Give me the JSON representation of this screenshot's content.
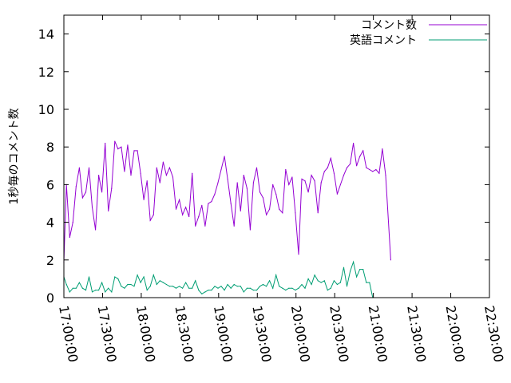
{
  "chart_data": {
    "type": "line",
    "ylabel": "1秒毎のコメント数",
    "xlabel": "",
    "title": "",
    "ylim": [
      0,
      15
    ],
    "xlim": [
      "17:00:00",
      "22:30:00"
    ],
    "grid": false,
    "legend_placement": "top-right",
    "y_ticks": [
      "0",
      "2",
      "4",
      "6",
      "8",
      "10",
      "12",
      "14"
    ],
    "x_ticks": [
      "17:00:00",
      "17:30:00",
      "18:00:00",
      "18:30:00",
      "19:00:00",
      "19:30:00",
      "20:00:00",
      "20:30:00",
      "21:00:00",
      "21:30:00",
      "22:00:00",
      "22:30:00"
    ],
    "series": [
      {
        "name": "コメント数",
        "color": "#9400d3",
        "points": [
          [
            "17:00:00",
            1.9
          ],
          [
            "17:02:00",
            6.0
          ],
          [
            "17:04:30",
            3.2
          ],
          [
            "17:07:00",
            4.0
          ],
          [
            "17:09:30",
            5.9
          ],
          [
            "17:12:00",
            6.9
          ],
          [
            "17:14:30",
            5.3
          ],
          [
            "17:17:00",
            5.6
          ],
          [
            "17:19:30",
            6.9
          ],
          [
            "17:22:00",
            4.8
          ],
          [
            "17:24:30",
            3.6
          ],
          [
            "17:27:00",
            6.5
          ],
          [
            "17:29:30",
            5.6
          ],
          [
            "17:32:00",
            8.2
          ],
          [
            "17:34:30",
            4.6
          ],
          [
            "17:37:00",
            5.8
          ],
          [
            "17:39:30",
            8.3
          ],
          [
            "17:42:00",
            7.9
          ],
          [
            "17:44:30",
            8.0
          ],
          [
            "17:47:00",
            6.7
          ],
          [
            "17:49:30",
            8.1
          ],
          [
            "17:52:00",
            6.5
          ],
          [
            "17:54:30",
            7.8
          ],
          [
            "17:57:00",
            7.8
          ],
          [
            "17:59:30",
            6.6
          ],
          [
            "18:02:00",
            5.2
          ],
          [
            "18:04:30",
            6.2
          ],
          [
            "18:07:00",
            4.1
          ],
          [
            "18:09:30",
            4.4
          ],
          [
            "18:12:00",
            6.9
          ],
          [
            "18:14:30",
            6.1
          ],
          [
            "18:17:00",
            7.2
          ],
          [
            "18:19:30",
            6.5
          ],
          [
            "18:22:00",
            6.9
          ],
          [
            "18:24:30",
            6.4
          ],
          [
            "18:27:00",
            4.7
          ],
          [
            "18:29:30",
            5.2
          ],
          [
            "18:32:00",
            4.4
          ],
          [
            "18:34:30",
            4.8
          ],
          [
            "18:37:00",
            4.3
          ],
          [
            "18:39:30",
            6.6
          ],
          [
            "18:42:00",
            3.8
          ],
          [
            "18:44:30",
            4.3
          ],
          [
            "18:47:00",
            4.9
          ],
          [
            "18:49:30",
            3.8
          ],
          [
            "18:52:00",
            5.0
          ],
          [
            "18:54:30",
            5.1
          ],
          [
            "18:57:00",
            5.5
          ],
          [
            "18:59:30",
            6.1
          ],
          [
            "19:02:00",
            6.8
          ],
          [
            "19:04:30",
            7.5
          ],
          [
            "19:07:00",
            6.3
          ],
          [
            "19:09:30",
            5.0
          ],
          [
            "19:12:00",
            3.8
          ],
          [
            "19:14:30",
            6.1
          ],
          [
            "19:17:00",
            4.6
          ],
          [
            "19:19:30",
            6.5
          ],
          [
            "19:22:00",
            5.8
          ],
          [
            "19:24:30",
            3.6
          ],
          [
            "19:27:00",
            6.1
          ],
          [
            "19:29:30",
            6.9
          ],
          [
            "19:32:00",
            5.6
          ],
          [
            "19:34:30",
            5.3
          ],
          [
            "19:37:00",
            4.4
          ],
          [
            "19:39:30",
            4.7
          ],
          [
            "19:42:00",
            6.0
          ],
          [
            "19:44:30",
            5.5
          ],
          [
            "19:47:00",
            4.7
          ],
          [
            "19:49:30",
            4.5
          ],
          [
            "19:52:00",
            6.8
          ],
          [
            "19:54:30",
            6.0
          ],
          [
            "19:57:00",
            6.4
          ],
          [
            "19:59:30",
            4.5
          ],
          [
            "20:02:00",
            2.3
          ],
          [
            "20:04:30",
            6.3
          ],
          [
            "20:07:00",
            6.2
          ],
          [
            "20:09:30",
            5.6
          ],
          [
            "20:12:00",
            6.5
          ],
          [
            "20:14:30",
            6.2
          ],
          [
            "20:17:00",
            4.5
          ],
          [
            "20:19:30",
            6.1
          ],
          [
            "20:22:00",
            6.7
          ],
          [
            "20:24:30",
            6.9
          ],
          [
            "20:27:00",
            7.4
          ],
          [
            "20:29:30",
            6.6
          ],
          [
            "20:32:00",
            5.5
          ],
          [
            "20:34:30",
            6.0
          ],
          [
            "20:37:00",
            6.5
          ],
          [
            "20:39:30",
            6.9
          ],
          [
            "20:42:00",
            7.1
          ],
          [
            "20:44:30",
            8.2
          ],
          [
            "20:47:00",
            7.0
          ],
          [
            "20:49:30",
            7.5
          ],
          [
            "20:52:00",
            7.8
          ],
          [
            "20:54:30",
            6.9
          ],
          [
            "20:57:00",
            6.8
          ],
          [
            "20:59:30",
            6.7
          ],
          [
            "21:02:00",
            6.8
          ],
          [
            "21:04:30",
            6.6
          ],
          [
            "21:07:00",
            7.9
          ],
          [
            "21:09:30",
            6.5
          ],
          [
            "21:13:30",
            2.0
          ]
        ]
      },
      {
        "name": "英語コメント",
        "color": "#009e73",
        "points": [
          [
            "17:00:00",
            1.1
          ],
          [
            "17:02:00",
            0.7
          ],
          [
            "17:04:30",
            0.3
          ],
          [
            "17:07:00",
            0.5
          ],
          [
            "17:09:30",
            0.5
          ],
          [
            "17:12:00",
            0.8
          ],
          [
            "17:14:30",
            0.5
          ],
          [
            "17:17:00",
            0.4
          ],
          [
            "17:19:30",
            1.1
          ],
          [
            "17:22:00",
            0.3
          ],
          [
            "17:24:30",
            0.4
          ],
          [
            "17:27:00",
            0.4
          ],
          [
            "17:29:30",
            0.8
          ],
          [
            "17:32:00",
            0.3
          ],
          [
            "17:34:30",
            0.5
          ],
          [
            "17:37:00",
            0.3
          ],
          [
            "17:39:30",
            1.1
          ],
          [
            "17:42:00",
            1.0
          ],
          [
            "17:44:30",
            0.6
          ],
          [
            "17:47:00",
            0.5
          ],
          [
            "17:49:30",
            0.7
          ],
          [
            "17:52:00",
            0.7
          ],
          [
            "17:54:30",
            0.6
          ],
          [
            "17:57:00",
            1.2
          ],
          [
            "17:59:30",
            0.8
          ],
          [
            "18:02:00",
            1.1
          ],
          [
            "18:04:30",
            0.4
          ],
          [
            "18:07:00",
            0.6
          ],
          [
            "18:09:30",
            1.2
          ],
          [
            "18:12:00",
            0.7
          ],
          [
            "18:14:30",
            0.9
          ],
          [
            "18:17:00",
            0.8
          ],
          [
            "18:19:30",
            0.7
          ],
          [
            "18:22:00",
            0.6
          ],
          [
            "18:24:30",
            0.6
          ],
          [
            "18:27:00",
            0.5
          ],
          [
            "18:29:30",
            0.6
          ],
          [
            "18:32:00",
            0.5
          ],
          [
            "18:34:30",
            0.8
          ],
          [
            "18:37:00",
            0.5
          ],
          [
            "18:39:30",
            0.5
          ],
          [
            "18:42:00",
            0.9
          ],
          [
            "18:44:30",
            0.4
          ],
          [
            "18:47:00",
            0.2
          ],
          [
            "18:49:30",
            0.3
          ],
          [
            "18:52:00",
            0.4
          ],
          [
            "18:54:30",
            0.4
          ],
          [
            "18:57:00",
            0.6
          ],
          [
            "18:59:30",
            0.5
          ],
          [
            "19:02:00",
            0.6
          ],
          [
            "19:04:30",
            0.4
          ],
          [
            "19:07:00",
            0.7
          ],
          [
            "19:09:30",
            0.5
          ],
          [
            "19:12:00",
            0.7
          ],
          [
            "19:14:30",
            0.6
          ],
          [
            "19:17:00",
            0.6
          ],
          [
            "19:19:30",
            0.3
          ],
          [
            "19:22:00",
            0.5
          ],
          [
            "19:24:30",
            0.5
          ],
          [
            "19:27:00",
            0.4
          ],
          [
            "19:29:30",
            0.4
          ],
          [
            "19:32:00",
            0.6
          ],
          [
            "19:34:30",
            0.7
          ],
          [
            "19:37:00",
            0.6
          ],
          [
            "19:39:30",
            0.9
          ],
          [
            "19:42:00",
            0.5
          ],
          [
            "19:44:30",
            1.2
          ],
          [
            "19:47:00",
            0.6
          ],
          [
            "19:49:30",
            0.5
          ],
          [
            "19:52:00",
            0.4
          ],
          [
            "19:54:30",
            0.5
          ],
          [
            "19:57:00",
            0.5
          ],
          [
            "19:59:30",
            0.4
          ],
          [
            "20:02:00",
            0.5
          ],
          [
            "20:04:30",
            0.7
          ],
          [
            "20:07:00",
            0.5
          ],
          [
            "20:09:30",
            1.0
          ],
          [
            "20:12:00",
            0.7
          ],
          [
            "20:14:30",
            1.2
          ],
          [
            "20:17:00",
            0.9
          ],
          [
            "20:19:30",
            0.8
          ],
          [
            "20:22:00",
            0.9
          ],
          [
            "20:24:30",
            0.4
          ],
          [
            "20:27:00",
            0.5
          ],
          [
            "20:29:30",
            0.9
          ],
          [
            "20:32:00",
            0.7
          ],
          [
            "20:34:30",
            0.8
          ],
          [
            "20:37:00",
            1.6
          ],
          [
            "20:39:30",
            0.6
          ],
          [
            "20:42:00",
            1.4
          ],
          [
            "20:44:30",
            1.9
          ],
          [
            "20:47:00",
            1.1
          ],
          [
            "20:49:30",
            1.5
          ],
          [
            "20:52:00",
            1.5
          ],
          [
            "20:54:30",
            0.8
          ],
          [
            "20:57:00",
            0.8
          ],
          [
            "20:59:30",
            0.0
          ]
        ]
      }
    ]
  }
}
